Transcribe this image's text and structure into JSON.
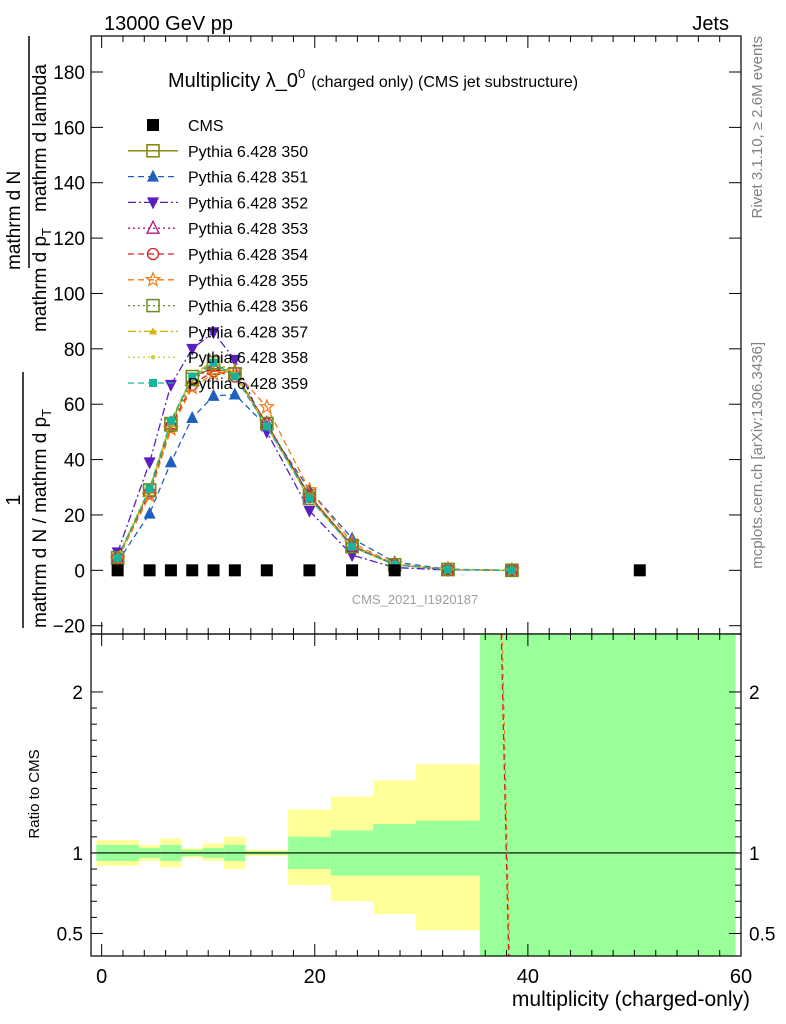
{
  "header": {
    "left": "13000 GeV pp",
    "right": "Jets"
  },
  "side_labels": {
    "rivet": "Rivet 3.1.10, ≥ 2.6M events",
    "mcplots": "mcplots.cern.ch [arXiv:1306.3436]"
  },
  "watermark": "CMS_2021_I1920187",
  "chart_data": [
    {
      "type": "line",
      "title_main": "Multiplicity λ_0",
      "title_sup": "0",
      "title_paren": "(charged only) (CMS jet substructure)",
      "ylabel_parts": [
        "1",
        "mathrm d N / mathrm d p",
        "T",
        "mathrm d p",
        "T",
        "mathrm d N",
        "mathrm d lambda"
      ],
      "xlim": [
        -1,
        60
      ],
      "ylim": [
        -23,
        193
      ],
      "yticks": [
        -20,
        0,
        20,
        40,
        60,
        80,
        100,
        120,
        140,
        160,
        180
      ],
      "x": [
        1.5,
        4.5,
        6.5,
        8.5,
        10.5,
        12.5,
        15.5,
        19.5,
        23.5,
        27.5,
        32.5,
        38.5,
        50.5
      ],
      "series": [
        {
          "name": "CMS",
          "color": "#000000",
          "marker": "square-filled",
          "dash": "none",
          "values": [
            0,
            0,
            0,
            0,
            0,
            0,
            0,
            0,
            0,
            0,
            null,
            null,
            0
          ]
        },
        {
          "name": "Pythia 6.428 350",
          "color": "#808000",
          "marker": "square-open",
          "dash": "solid",
          "values": [
            4.5,
            29,
            53,
            70,
            73,
            71,
            53,
            27,
            9,
            2,
            0.3,
            0,
            null
          ]
        },
        {
          "name": "Pythia 6.428 351",
          "color": "#1f5fbf",
          "marker": "triangle-up-filled",
          "dash": "6,4",
          "values": [
            3,
            20.5,
            39,
            55,
            63,
            63.5,
            52,
            29,
            11.5,
            3,
            0.4,
            0,
            null
          ]
        },
        {
          "name": "Pythia 6.428 352",
          "color": "#5a1ec2",
          "marker": "triangle-down-filled",
          "dash": "8,3,2,3",
          "values": [
            6.5,
            39,
            67,
            80,
            86,
            76,
            50,
            21.5,
            5.5,
            1,
            0.1,
            0,
            null
          ]
        },
        {
          "name": "Pythia 6.428 353",
          "color": "#b0187a",
          "marker": "triangle-up-open",
          "dash": "2,3",
          "values": [
            4.5,
            28.5,
            53,
            68.5,
            74,
            71,
            53,
            27,
            8.5,
            2,
            0.3,
            0,
            null
          ]
        },
        {
          "name": "Pythia 6.428 354",
          "color": "#d81e1e",
          "marker": "circle-open",
          "dash": "6,4",
          "values": [
            4.5,
            28,
            52,
            67,
            72,
            70,
            53,
            26.5,
            9,
            2,
            0.3,
            0,
            null
          ]
        },
        {
          "name": "Pythia 6.428 355",
          "color": "#ef7a12",
          "marker": "star-open",
          "dash": "6,4",
          "values": [
            4,
            27,
            51,
            66,
            71,
            72,
            59,
            29,
            10,
            2.2,
            0.4,
            0,
            null
          ]
        },
        {
          "name": "Pythia 6.428 356",
          "color": "#6b8e23",
          "marker": "square-open",
          "dash": "2,3",
          "values": [
            4.5,
            29,
            52.5,
            69,
            75,
            71,
            53,
            26,
            8.5,
            2,
            0.3,
            0,
            null
          ]
        },
        {
          "name": "Pythia 6.428 357",
          "color": "#d4b300",
          "marker": "triangle-small",
          "dash": "8,3,2,3",
          "values": [
            4.5,
            29,
            53,
            70,
            76,
            71,
            52,
            26,
            8.5,
            2,
            0.3,
            0,
            null
          ]
        },
        {
          "name": "Pythia 6.428 358",
          "color": "#c8d62e",
          "marker": "dot",
          "dash": "2,3",
          "values": [
            5,
            30,
            54,
            70,
            75,
            70,
            52,
            26,
            8.5,
            2,
            0.3,
            0,
            null
          ]
        },
        {
          "name": "Pythia 6.428 359",
          "color": "#16b59b",
          "marker": "square-filled-small",
          "dash": "6,4",
          "values": [
            4.5,
            29.5,
            54,
            70,
            75,
            70,
            52,
            26,
            8.5,
            2,
            0.3,
            0,
            null
          ]
        }
      ]
    },
    {
      "type": "area",
      "ylabel": "Ratio to CMS",
      "xlabel": "multiplicity (charged-only)",
      "xlim": [
        -1,
        60
      ],
      "ylim": [
        0.36,
        2.36
      ],
      "xticks": [
        0,
        20,
        40,
        60
      ],
      "yticks": [
        0.5,
        1,
        2
      ],
      "bands": {
        "edges": [
          -0.5,
          3.5,
          5.5,
          7.5,
          9.5,
          11.5,
          13.5,
          17.5,
          21.5,
          25.5,
          29.5,
          35.5,
          59.5
        ],
        "green_lo": [
          0.95,
          0.97,
          0.95,
          0.98,
          0.97,
          0.95,
          0.99,
          0.9,
          0.86,
          0.86,
          0.86,
          0.36
        ],
        "green_hi": [
          1.05,
          1.03,
          1.05,
          1.02,
          1.03,
          1.05,
          1.01,
          1.1,
          1.14,
          1.18,
          1.2,
          2.36
        ],
        "yellow_lo": [
          0.92,
          0.95,
          0.91,
          0.97,
          0.95,
          0.9,
          0.98,
          0.8,
          0.7,
          0.62,
          0.52,
          0.36
        ],
        "yellow_hi": [
          1.08,
          1.05,
          1.09,
          1.03,
          1.06,
          1.1,
          1.02,
          1.27,
          1.35,
          1.45,
          1.55,
          2.36
        ]
      },
      "spike_x": [
        37.5,
        38.2
      ]
    }
  ]
}
